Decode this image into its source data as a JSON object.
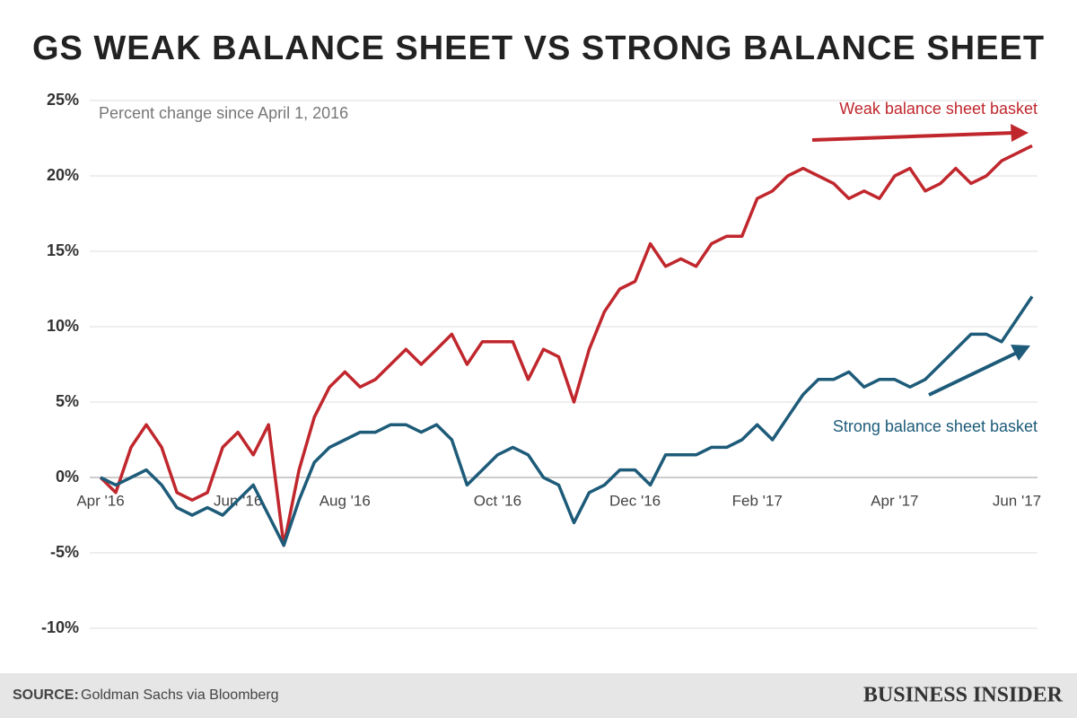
{
  "chart_data": {
    "type": "line",
    "title": "GS WEAK BALANCE SHEET VS STRONG BALANCE SHEET",
    "subtitle": "Percent change since April 1, 2016",
    "annotations": [
      "Weak balance sheet basket",
      "Strong balance sheet basket"
    ],
    "source_label": "SOURCE:",
    "source": "Goldman Sachs via Bloomberg",
    "brand": "BUSINESS INSIDER",
    "categories": [
      "Apr '16",
      null,
      null,
      null,
      null,
      null,
      null,
      null,
      null,
      "Jun '16",
      null,
      null,
      null,
      null,
      null,
      null,
      "Aug '16",
      null,
      null,
      null,
      null,
      null,
      null,
      null,
      null,
      null,
      "Oct '16",
      null,
      null,
      null,
      null,
      null,
      null,
      null,
      null,
      "Dec '16",
      null,
      null,
      null,
      null,
      null,
      null,
      null,
      "Feb '17",
      null,
      null,
      null,
      null,
      null,
      null,
      null,
      null,
      "Apr '17",
      null,
      null,
      null,
      null,
      null,
      null,
      null,
      "Jun '17",
      null
    ],
    "series": [
      {
        "name": "Weak balance sheet basket",
        "color": "#c0272d",
        "values": [
          0,
          -1,
          2,
          3.5,
          2,
          -1,
          -1.5,
          -1,
          2,
          3,
          1.5,
          3.5,
          -4.5,
          0.5,
          4,
          6,
          7,
          6,
          6.5,
          7.5,
          8.5,
          7.5,
          8.5,
          9.5,
          7.5,
          9,
          9,
          9,
          6.5,
          8.5,
          8,
          5,
          8.5,
          11,
          12.5,
          13,
          15.5,
          14,
          14.5,
          14,
          15.5,
          16,
          16,
          18.5,
          19,
          20,
          20.5,
          20,
          19.5,
          18.5,
          19,
          18.5,
          20,
          20.5,
          19,
          19.5,
          20.5,
          19.5,
          20,
          21,
          21.5,
          22
        ]
      },
      {
        "name": "Strong balance sheet basket",
        "color": "#1d5b79",
        "values": [
          0,
          -0.5,
          0,
          0.5,
          -0.5,
          -2,
          -2.5,
          -2,
          -2.5,
          -1.5,
          -0.5,
          -2.5,
          -4.5,
          -1.5,
          1,
          2,
          2.5,
          3,
          3,
          3.5,
          3.5,
          3,
          3.5,
          2.5,
          -0.5,
          0.5,
          1.5,
          2,
          1.5,
          0,
          -0.5,
          -3,
          -1,
          -0.5,
          0.5,
          0.5,
          -0.5,
          1.5,
          1.5,
          1.5,
          2,
          2,
          2.5,
          3.5,
          2.5,
          4,
          5.5,
          6.5,
          6.5,
          7,
          6,
          6.5,
          6.5,
          6,
          6.5,
          7.5,
          8.5,
          9.5,
          9.5,
          9,
          10.5,
          12
        ]
      }
    ],
    "ylim": [
      -10,
      25
    ],
    "yticks": [
      {
        "value": -10,
        "label": "-10%"
      },
      {
        "value": -5,
        "label": "-5%"
      },
      {
        "value": 0,
        "label": "0%"
      },
      {
        "value": 5,
        "label": "5%"
      },
      {
        "value": 10,
        "label": "10%"
      },
      {
        "value": 15,
        "label": "15%"
      },
      {
        "value": 20,
        "label": "20%"
      },
      {
        "value": 25,
        "label": "25%"
      }
    ],
    "grid": true
  }
}
